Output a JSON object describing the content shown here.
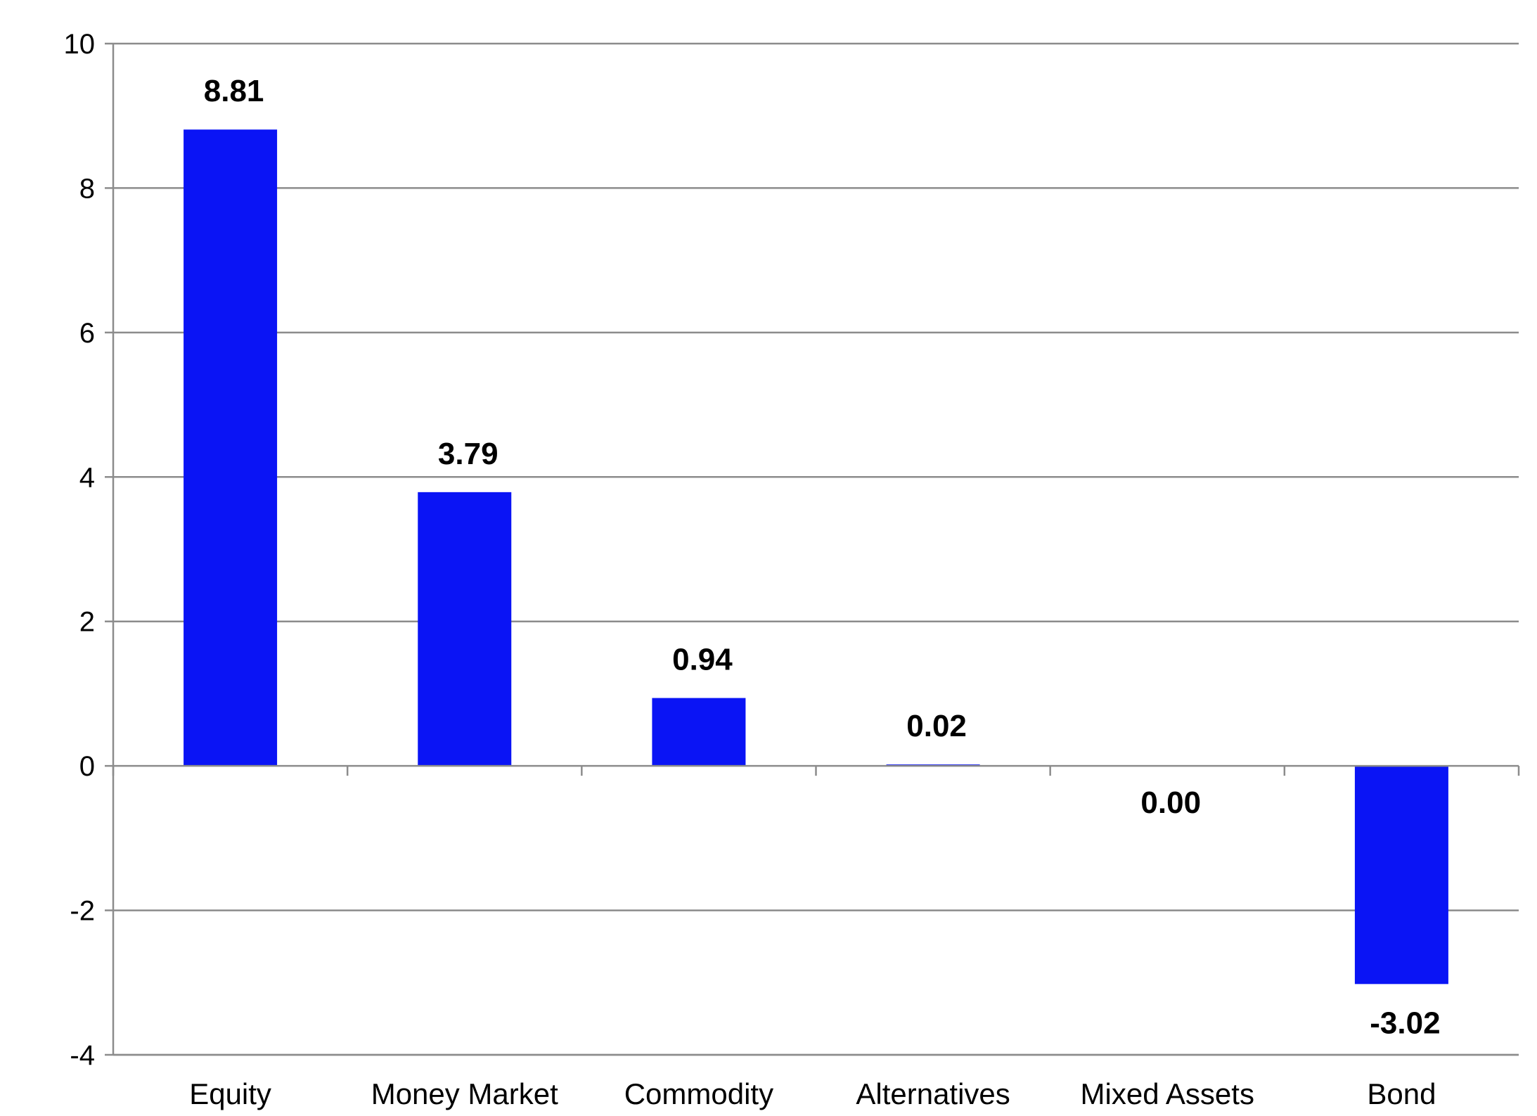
{
  "chart_data": {
    "type": "bar",
    "title": "",
    "xlabel": "",
    "ylabel": "",
    "categories": [
      "Equity",
      "Money Market",
      "Commodity",
      "Alternatives",
      "Mixed Assets",
      "Bond"
    ],
    "values": [
      8.81,
      3.79,
      0.94,
      0.02,
      0.0,
      -3.02
    ],
    "data_labels": [
      "8.81",
      "3.79",
      "0.94",
      "0.02",
      "0.00",
      "-3.02"
    ],
    "ylim": [
      -4,
      10
    ],
    "yticks": [
      -4,
      -2,
      0,
      2,
      4,
      6,
      8,
      10
    ],
    "ytick_labels": [
      "-4",
      "-2",
      "0",
      "2",
      "4",
      "6",
      "8",
      "10"
    ],
    "grid": true,
    "legend": "none",
    "bar_color": "#0a14f5",
    "grid_color": "#8c8c8c"
  }
}
